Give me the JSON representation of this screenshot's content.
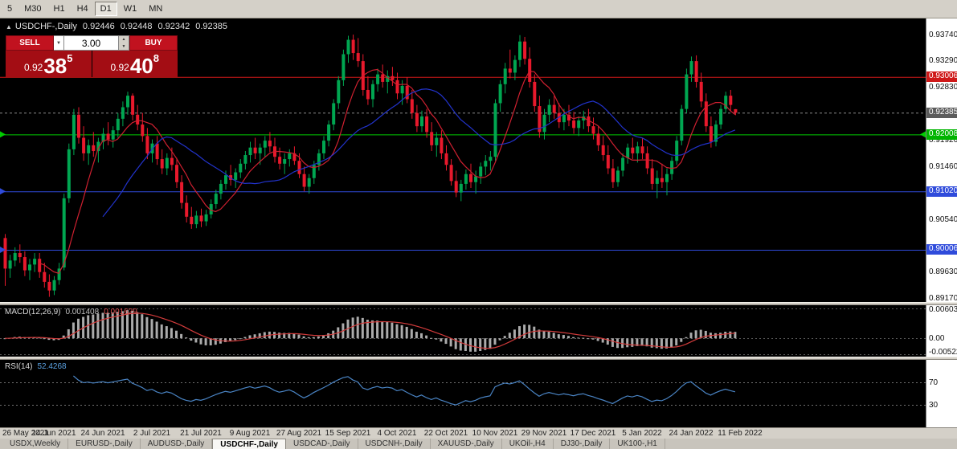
{
  "toolbar": {
    "timeframes": [
      "5",
      "M30",
      "H1",
      "H4",
      "D1",
      "W1",
      "MN"
    ],
    "active": "D1"
  },
  "chart": {
    "symbol_title": "USDCHF-,Daily",
    "ohlc": {
      "open": "0.92446",
      "high": "0.92448",
      "low": "0.92342",
      "close": "0.92385"
    },
    "trade_widget": {
      "sell_label": "SELL",
      "buy_label": "BUY",
      "volume": "3.00",
      "sell_price": {
        "prefix": "0.92",
        "big": "38",
        "sup": "5"
      },
      "buy_price": {
        "prefix": "0.92",
        "big": "40",
        "sup": "8"
      }
    },
    "price_axis": {
      "ticks": [
        {
          "label": "0.93740",
          "value": 0.9374
        },
        {
          "label": "0.93290",
          "value": 0.9329
        },
        {
          "label": "0.92830",
          "value": 0.9283
        },
        {
          "label": "0.91920",
          "value": 0.9192
        },
        {
          "label": "0.91460",
          "value": 0.9146
        },
        {
          "label": "0.90540",
          "value": 0.9054
        },
        {
          "label": "0.89630",
          "value": 0.8963
        },
        {
          "label": "0.89170",
          "value": 0.8917
        }
      ],
      "badges": [
        {
          "label": "0.93006",
          "value": 0.93006,
          "color": "#cf1919",
          "name": "resistance-level-badge"
        },
        {
          "label": "0.92385",
          "value": 0.92385,
          "color": "#5c5c5c",
          "name": "current-price-badge"
        },
        {
          "label": "0.92008",
          "value": 0.92008,
          "color": "#00b400",
          "name": "support-level-badge"
        },
        {
          "label": "0.91020",
          "value": 0.9102,
          "color": "#2f4bdb",
          "name": "support-level-badge"
        },
        {
          "label": "0.90006",
          "value": 0.90006,
          "color": "#2f4bdb",
          "name": "support-level-badge"
        }
      ]
    }
  },
  "chart_data": {
    "type": "candlestick",
    "symbol": "USDCHF",
    "timeframe": "Daily",
    "price_range": [
      0.891,
      0.9402
    ],
    "dates": [
      "26 May 2021",
      "14 Jun 2021",
      "24 Jun 2021",
      "2 Jul 2021",
      "21 Jul 2021",
      "9 Aug 2021",
      "27 Aug 2021",
      "15 Sep 2021",
      "4 Oct 2021",
      "22 Oct 2021",
      "10 Nov 2021",
      "29 Nov 2021",
      "17 Dec 2021",
      "5 Jan 2022",
      "24 Jan 2022",
      "11 Feb 2022"
    ],
    "candles_per_label": 10,
    "candles": [
      [
        0.9021,
        0.9028,
        0.8938,
        0.8968
      ],
      [
        0.8968,
        0.8992,
        0.8952,
        0.8982
      ],
      [
        0.8982,
        0.9005,
        0.8972,
        0.8995
      ],
      [
        0.8995,
        0.901,
        0.8978,
        0.8988
      ],
      [
        0.8988,
        0.8998,
        0.8955,
        0.8965
      ],
      [
        0.8965,
        0.8985,
        0.8948,
        0.8975
      ],
      [
        0.8975,
        0.8995,
        0.8962,
        0.8985
      ],
      [
        0.8985,
        0.8995,
        0.8952,
        0.8962
      ],
      [
        0.8962,
        0.8978,
        0.8935,
        0.8945
      ],
      [
        0.8945,
        0.8958,
        0.8919,
        0.893
      ],
      [
        0.893,
        0.8955,
        0.8922,
        0.8948
      ],
      [
        0.8948,
        0.8978,
        0.894,
        0.8968
      ],
      [
        0.897,
        0.9098,
        0.8965,
        0.909
      ],
      [
        0.909,
        0.9185,
        0.9082,
        0.9175
      ],
      [
        0.9175,
        0.9245,
        0.9165,
        0.9235
      ],
      [
        0.9235,
        0.9248,
        0.9185,
        0.9195
      ],
      [
        0.9195,
        0.9215,
        0.9155,
        0.9168
      ],
      [
        0.9168,
        0.9192,
        0.9148,
        0.9182
      ],
      [
        0.9182,
        0.9205,
        0.9162,
        0.9172
      ],
      [
        0.9172,
        0.9195,
        0.9152,
        0.9188
      ],
      [
        0.9188,
        0.9212,
        0.9175,
        0.9202
      ],
      [
        0.9202,
        0.9222,
        0.9182,
        0.9192
      ],
      [
        0.9192,
        0.9215,
        0.9178,
        0.9208
      ],
      [
        0.9208,
        0.9238,
        0.9195,
        0.9228
      ],
      [
        0.9228,
        0.9258,
        0.9215,
        0.9248
      ],
      [
        0.9248,
        0.9275,
        0.9235,
        0.9268
      ],
      [
        0.9268,
        0.9272,
        0.9225,
        0.9235
      ],
      [
        0.9235,
        0.9252,
        0.9208,
        0.9218
      ],
      [
        0.9218,
        0.9238,
        0.9188,
        0.9198
      ],
      [
        0.9198,
        0.9212,
        0.9158,
        0.9168
      ],
      [
        0.9168,
        0.9192,
        0.9152,
        0.9185
      ],
      [
        0.9185,
        0.9198,
        0.9148,
        0.9158
      ],
      [
        0.9158,
        0.9175,
        0.9132,
        0.9142
      ],
      [
        0.9142,
        0.9168,
        0.913,
        0.916
      ],
      [
        0.916,
        0.9178,
        0.9138,
        0.9148
      ],
      [
        0.9148,
        0.916,
        0.9108,
        0.9118
      ],
      [
        0.9118,
        0.913,
        0.9072,
        0.9082
      ],
      [
        0.9082,
        0.9095,
        0.9048,
        0.9058
      ],
      [
        0.9058,
        0.9075,
        0.9037,
        0.9045
      ],
      [
        0.9045,
        0.9068,
        0.9038,
        0.906
      ],
      [
        0.906,
        0.9072,
        0.904,
        0.905
      ],
      [
        0.905,
        0.907,
        0.9042,
        0.9062
      ],
      [
        0.9062,
        0.9088,
        0.9055,
        0.908
      ],
      [
        0.908,
        0.9105,
        0.9072,
        0.9098
      ],
      [
        0.9098,
        0.9122,
        0.9088,
        0.9115
      ],
      [
        0.9115,
        0.9138,
        0.9105,
        0.913
      ],
      [
        0.913,
        0.9148,
        0.9112,
        0.9122
      ],
      [
        0.9122,
        0.9142,
        0.9108,
        0.9135
      ],
      [
        0.9135,
        0.9158,
        0.9125,
        0.915
      ],
      [
        0.915,
        0.9172,
        0.914,
        0.9165
      ],
      [
        0.9165,
        0.9188,
        0.9152,
        0.9178
      ],
      [
        0.9178,
        0.9195,
        0.9158,
        0.9168
      ],
      [
        0.9168,
        0.9185,
        0.9148,
        0.9178
      ],
      [
        0.9178,
        0.9198,
        0.9162,
        0.919
      ],
      [
        0.919,
        0.9205,
        0.917,
        0.918
      ],
      [
        0.918,
        0.9195,
        0.9152,
        0.9162
      ],
      [
        0.9162,
        0.9178,
        0.914,
        0.915
      ],
      [
        0.915,
        0.9168,
        0.9132,
        0.9158
      ],
      [
        0.9158,
        0.9175,
        0.9145,
        0.9168
      ],
      [
        0.9168,
        0.918,
        0.9148,
        0.9155
      ],
      [
        0.9155,
        0.9168,
        0.9125,
        0.9132
      ],
      [
        0.9132,
        0.9145,
        0.9102,
        0.911
      ],
      [
        0.911,
        0.9132,
        0.9098,
        0.9125
      ],
      [
        0.9125,
        0.9155,
        0.9115,
        0.9148
      ],
      [
        0.9148,
        0.9175,
        0.9138,
        0.9168
      ],
      [
        0.9168,
        0.9198,
        0.9158,
        0.919
      ],
      [
        0.919,
        0.9225,
        0.918,
        0.9218
      ],
      [
        0.9218,
        0.9262,
        0.9208,
        0.9255
      ],
      [
        0.9255,
        0.9302,
        0.9245,
        0.9295
      ],
      [
        0.9295,
        0.9348,
        0.9285,
        0.934
      ],
      [
        0.934,
        0.9372,
        0.9325,
        0.9365
      ],
      [
        0.9365,
        0.9374,
        0.933,
        0.9342
      ],
      [
        0.9342,
        0.9368,
        0.9318,
        0.9328
      ],
      [
        0.9328,
        0.934,
        0.9268,
        0.9278
      ],
      [
        0.9278,
        0.9302,
        0.9252,
        0.9262
      ],
      [
        0.9262,
        0.9295,
        0.9248,
        0.9288
      ],
      [
        0.9288,
        0.9315,
        0.9275,
        0.9305
      ],
      [
        0.9305,
        0.9322,
        0.9282,
        0.9292
      ],
      [
        0.9292,
        0.9312,
        0.9272,
        0.9302
      ],
      [
        0.9302,
        0.9318,
        0.9285,
        0.9295
      ],
      [
        0.9295,
        0.9308,
        0.9262,
        0.9272
      ],
      [
        0.9272,
        0.9295,
        0.9252,
        0.9285
      ],
      [
        0.9285,
        0.93,
        0.9255,
        0.9262
      ],
      [
        0.9262,
        0.9278,
        0.9228,
        0.9238
      ],
      [
        0.9238,
        0.9252,
        0.9205,
        0.9215
      ],
      [
        0.9215,
        0.9242,
        0.9205,
        0.9232
      ],
      [
        0.9232,
        0.9245,
        0.9195,
        0.9205
      ],
      [
        0.9205,
        0.9222,
        0.9172,
        0.9182
      ],
      [
        0.9182,
        0.9205,
        0.9162,
        0.9195
      ],
      [
        0.9195,
        0.9208,
        0.9158,
        0.9168
      ],
      [
        0.9168,
        0.9182,
        0.9138,
        0.9148
      ],
      [
        0.9148,
        0.9158,
        0.9112,
        0.912
      ],
      [
        0.912,
        0.9138,
        0.9092,
        0.91
      ],
      [
        0.91,
        0.9122,
        0.9085,
        0.9115
      ],
      [
        0.9115,
        0.914,
        0.9105,
        0.9132
      ],
      [
        0.9132,
        0.915,
        0.9108,
        0.9118
      ],
      [
        0.9118,
        0.9138,
        0.9098,
        0.9128
      ],
      [
        0.9128,
        0.9152,
        0.9115,
        0.9145
      ],
      [
        0.9145,
        0.9165,
        0.913,
        0.9155
      ],
      [
        0.9155,
        0.9172,
        0.9138,
        0.9162
      ],
      [
        0.9162,
        0.9262,
        0.9155,
        0.9255
      ],
      [
        0.9255,
        0.9295,
        0.924,
        0.9288
      ],
      [
        0.9288,
        0.9325,
        0.9272,
        0.9315
      ],
      [
        0.9315,
        0.9348,
        0.9298,
        0.9308
      ],
      [
        0.9308,
        0.9338,
        0.9295,
        0.933
      ],
      [
        0.933,
        0.9373,
        0.9318,
        0.9362
      ],
      [
        0.9362,
        0.937,
        0.9322,
        0.9332
      ],
      [
        0.9332,
        0.9352,
        0.9282,
        0.9292
      ],
      [
        0.9292,
        0.9305,
        0.924,
        0.925
      ],
      [
        0.925,
        0.9268,
        0.9195,
        0.9205
      ],
      [
        0.9205,
        0.9245,
        0.9192,
        0.9235
      ],
      [
        0.9235,
        0.9262,
        0.9222,
        0.9252
      ],
      [
        0.9252,
        0.9268,
        0.9228,
        0.9238
      ],
      [
        0.9238,
        0.9255,
        0.9212,
        0.9222
      ],
      [
        0.9222,
        0.9245,
        0.9208,
        0.9235
      ],
      [
        0.9235,
        0.9252,
        0.9215,
        0.9225
      ],
      [
        0.9225,
        0.924,
        0.9202,
        0.9212
      ],
      [
        0.9212,
        0.9232,
        0.9198,
        0.9225
      ],
      [
        0.9225,
        0.9242,
        0.921,
        0.9232
      ],
      [
        0.9232,
        0.9245,
        0.9205,
        0.9215
      ],
      [
        0.9215,
        0.923,
        0.9192,
        0.9202
      ],
      [
        0.9202,
        0.9215,
        0.9172,
        0.9182
      ],
      [
        0.9182,
        0.9198,
        0.9155,
        0.9165
      ],
      [
        0.9165,
        0.9182,
        0.9132,
        0.9142
      ],
      [
        0.9142,
        0.9158,
        0.9108,
        0.9118
      ],
      [
        0.9118,
        0.9145,
        0.911,
        0.9138
      ],
      [
        0.9138,
        0.9168,
        0.9128,
        0.916
      ],
      [
        0.916,
        0.9185,
        0.915,
        0.9178
      ],
      [
        0.9178,
        0.9195,
        0.9158,
        0.9168
      ],
      [
        0.9168,
        0.9188,
        0.9152,
        0.918
      ],
      [
        0.918,
        0.9195,
        0.9158,
        0.9168
      ],
      [
        0.9168,
        0.918,
        0.9132,
        0.9142
      ],
      [
        0.9142,
        0.9158,
        0.9105,
        0.9115
      ],
      [
        0.9115,
        0.9138,
        0.909,
        0.9125
      ],
      [
        0.9125,
        0.915,
        0.9108,
        0.9118
      ],
      [
        0.9118,
        0.9142,
        0.9095,
        0.9132
      ],
      [
        0.9132,
        0.9162,
        0.9122,
        0.9155
      ],
      [
        0.9155,
        0.9198,
        0.9148,
        0.919
      ],
      [
        0.919,
        0.9252,
        0.9182,
        0.9245
      ],
      [
        0.9245,
        0.9315,
        0.9238,
        0.9305
      ],
      [
        0.9305,
        0.9336,
        0.9292,
        0.9328
      ],
      [
        0.9328,
        0.9338,
        0.9282,
        0.9292
      ],
      [
        0.9292,
        0.9308,
        0.9248,
        0.9258
      ],
      [
        0.9258,
        0.9272,
        0.9205,
        0.9215
      ],
      [
        0.9215,
        0.9232,
        0.9178,
        0.9188
      ],
      [
        0.9188,
        0.9225,
        0.918,
        0.9218
      ],
      [
        0.9218,
        0.9252,
        0.921,
        0.9245
      ],
      [
        0.9245,
        0.9275,
        0.9238,
        0.9268
      ],
      [
        0.9268,
        0.9278,
        0.9242,
        0.9252
      ],
      [
        0.92446,
        0.92448,
        0.92342,
        0.92385
      ]
    ],
    "overlays": {
      "ma_fast": {
        "period": 8,
        "color": "#cf2030"
      },
      "ma_slow": {
        "period": 21,
        "color": "#2233cc"
      },
      "hlines": [
        {
          "value": 0.93006,
          "color": "#cf1919",
          "arrows": "none"
        },
        {
          "value": 0.92008,
          "color": "#00cd00",
          "arrows": "both"
        },
        {
          "value": 0.9102,
          "color": "#2f4bdb",
          "arrows": "left"
        },
        {
          "value": 0.90006,
          "color": "#2f4bdb",
          "arrows": "left"
        }
      ],
      "bid_line": {
        "value": 0.92385,
        "color": "#8a8a8a",
        "style": "dash"
      }
    },
    "colors": {
      "bull": "#00a651",
      "bear": "#e8192c",
      "macd_hist": "#ababab",
      "macd_signal": "#d23b3b",
      "rsi_line": "#4a84c4",
      "level_dash": "#707070"
    },
    "indicators": [
      {
        "name": "MACD",
        "title": "MACD(12,26,9)",
        "params": [
          12,
          26,
          9
        ],
        "values": [
          "0.001408",
          "0.001629"
        ],
        "axis_labels": [
          "0.00603",
          "0.00",
          "-0.00522"
        ]
      },
      {
        "name": "RSI",
        "title": "RSI(14)",
        "params": [
          14
        ],
        "values": [
          "52.4268"
        ],
        "axis_labels": [
          "70",
          "30"
        ],
        "levels": [
          70,
          30
        ]
      }
    ]
  },
  "bottom_tabs": {
    "items": [
      "USDX,Weekly",
      "EURUSD-,Daily",
      "AUDUSD-,Daily",
      "USDCHF-,Daily",
      "USDCAD-,Daily",
      "USDCNH-,Daily",
      "XAUUSD-,Daily",
      "UKOil-,H4",
      "DJ30-,Daily",
      "UK100-,H1"
    ],
    "active_index": 3
  }
}
